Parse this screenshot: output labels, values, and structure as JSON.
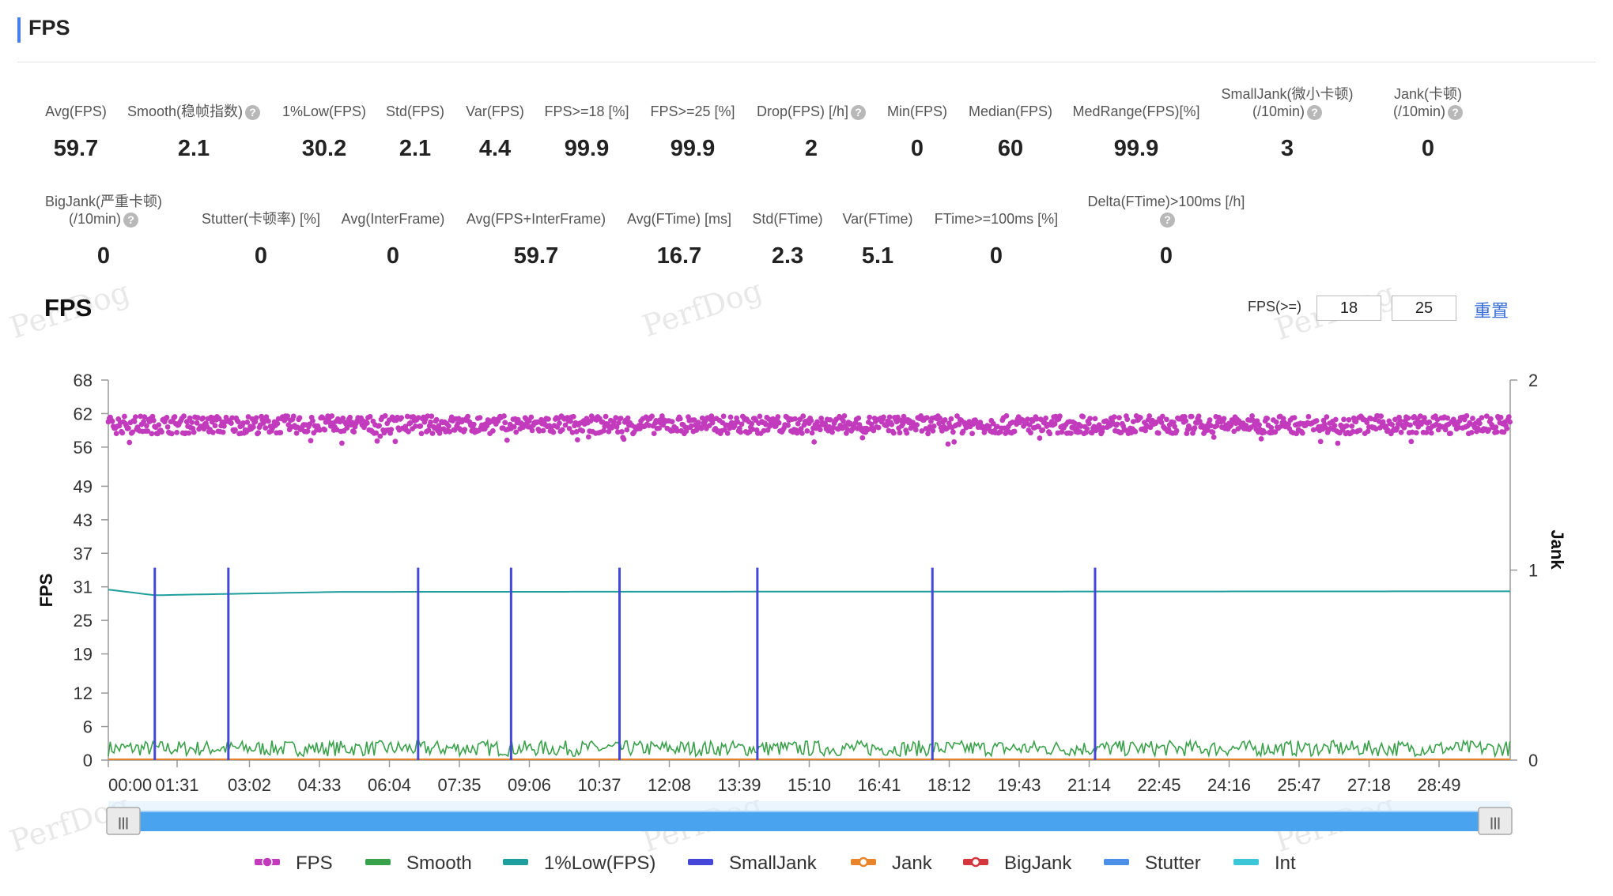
{
  "header": {
    "title": "FPS"
  },
  "metrics_row1": [
    {
      "label": "Avg(FPS)",
      "value": "59.7"
    },
    {
      "label": "Smooth(稳帧指数)",
      "value": "2.1",
      "help": true
    },
    {
      "label": "1%Low(FPS)",
      "value": "30.2"
    },
    {
      "label": "Std(FPS)",
      "value": "2.1"
    },
    {
      "label": "Var(FPS)",
      "value": "4.4"
    },
    {
      "label": "FPS>=18 [%]",
      "value": "99.9"
    },
    {
      "label": "FPS>=25 [%]",
      "value": "99.9"
    },
    {
      "label": "Drop(FPS) [/h]",
      "value": "2",
      "help": true
    },
    {
      "label": "Min(FPS)",
      "value": "0"
    },
    {
      "label": "Median(FPS)",
      "value": "60"
    },
    {
      "label": "MedRange(FPS)[%]",
      "value": "99.9"
    },
    {
      "label": "SmallJank(微小卡顿)",
      "label2": "(/10min)",
      "value": "3",
      "help": true
    },
    {
      "label": "Jank(卡顿)",
      "label2": "(/10min)",
      "value": "0",
      "help": true
    }
  ],
  "metrics_row2": [
    {
      "label": "BigJank(严重卡顿)",
      "label2": "(/10min)",
      "value": "0",
      "help": true
    },
    {
      "label": "Stutter(卡顿率) [%]",
      "value": "0"
    },
    {
      "label": "Avg(InterFrame)",
      "value": "0"
    },
    {
      "label": "Avg(FPS+InterFrame)",
      "value": "59.7"
    },
    {
      "label": "Avg(FTime) [ms]",
      "value": "16.7"
    },
    {
      "label": "Std(FTime)",
      "value": "2.3"
    },
    {
      "label": "Var(FTime)",
      "value": "5.1"
    },
    {
      "label": "FTime>=100ms [%]",
      "value": "0"
    },
    {
      "label": "Delta(FTime)>100ms [/h]",
      "value": "0",
      "help": true
    }
  ],
  "help_glyph": "?",
  "chart_panel": {
    "title": "FPS",
    "filter_label": "FPS(>=)",
    "threshold1": "18",
    "threshold2": "25",
    "reset_label": "重置",
    "watermark": "PerfDog"
  },
  "chart_data": {
    "type": "line",
    "ylabel": "FPS",
    "y2label": "Jank",
    "yticks": [
      "68",
      "62",
      "56",
      "49",
      "43",
      "37",
      "31",
      "25",
      "19",
      "12",
      "6",
      "0"
    ],
    "ytick_values": [
      68,
      62,
      56,
      49,
      43,
      37,
      31,
      25,
      19,
      12,
      6,
      0
    ],
    "ylim": [
      0,
      68
    ],
    "y2ticks": [
      "2",
      "1",
      "0"
    ],
    "y2lim": [
      0,
      2
    ],
    "xticks": [
      "00:00",
      "01:31",
      "03:02",
      "04:33",
      "06:04",
      "07:35",
      "09:06",
      "10:37",
      "12:08",
      "13:39",
      "15:10",
      "16:41",
      "18:12",
      "19:43",
      "21:14",
      "22:45",
      "24:16",
      "25:47",
      "27:18",
      "28:49"
    ],
    "xlim_seconds": [
      0,
      1810
    ],
    "series": [
      {
        "name": "FPS",
        "color": "#c23bbd",
        "approx_value": 60,
        "noise": 1.6
      },
      {
        "name": "Smooth",
        "color": "#3aa14b",
        "approx_value": 2.1,
        "noise": 1.4
      },
      {
        "name": "1%Low(FPS)",
        "color": "#1f9e9e",
        "values_approx": [
          {
            "t": 0,
            "v": 30.5
          },
          {
            "t": 60,
            "v": 29.5
          },
          {
            "t": 300,
            "v": 30.1
          },
          {
            "t": 1810,
            "v": 30.2
          }
        ]
      },
      {
        "name": "SmallJank",
        "color": "#4447d8",
        "events_seconds": [
          60,
          155,
          400,
          520,
          660,
          838,
          1064,
          1274
        ],
        "event_value": 1
      },
      {
        "name": "Jank",
        "color": "#e8842c"
      },
      {
        "name": "BigJank",
        "color": "#d3363c"
      },
      {
        "name": "Stutter",
        "color": "#4b90e6"
      },
      {
        "name": "Int",
        "color": "#3cc7d8"
      }
    ]
  },
  "legend": [
    {
      "name": "FPS",
      "color": "#c23bbd"
    },
    {
      "name": "Smooth",
      "color": "#3aa14b"
    },
    {
      "name": "1%Low(FPS)",
      "color": "#1f9e9e"
    },
    {
      "name": "SmallJank",
      "color": "#4447d8"
    },
    {
      "name": "Jank",
      "color": "#e8842c"
    },
    {
      "name": "BigJank",
      "color": "#d3363c"
    },
    {
      "name": "Stutter",
      "color": "#4b90e6"
    },
    {
      "name": "Int",
      "color": "#3cc7d8"
    }
  ],
  "slider": {
    "handle_glyph": "|||"
  }
}
